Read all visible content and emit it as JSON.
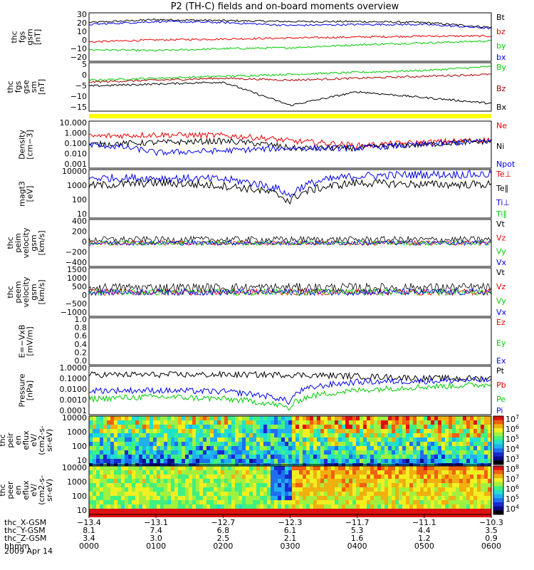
{
  "title": "P2 (TH-C) fields and on-board moments overview",
  "date": "2009 Apr 14",
  "panels": [
    {
      "id": "fgs_gsm",
      "ylabel": [
        "thc",
        "fgs",
        "gsm",
        "[nT]"
      ],
      "ylim": [
        -20,
        30
      ],
      "log": false,
      "ticks": [
        "30",
        "20",
        "10",
        "0",
        "−10",
        "−20"
      ],
      "legend": [
        {
          "t": "Bt",
          "c": "#000000"
        },
        {
          "t": "bz",
          "c": "#ee0000"
        },
        {
          "t": "by",
          "c": "#00cc00"
        },
        {
          "t": "bx",
          "c": "#0000ee"
        }
      ]
    },
    {
      "id": "fgs_gse",
      "ylabel": [
        "thc",
        "fgs",
        "gse",
        "sm",
        "[nT]"
      ],
      "ylim": [
        -18,
        7
      ],
      "log": false,
      "ticks": [
        "5",
        "0",
        "−5",
        "−10",
        "−15"
      ],
      "legend": [
        {
          "t": "By",
          "c": "#00cc00"
        },
        {
          "t": "Bz",
          "c": "#aa0000"
        },
        {
          "t": "Bx",
          "c": "#000000"
        }
      ]
    },
    {
      "id": "density",
      "ylabel": [
        "Density",
        "[cm−3]"
      ],
      "ylim": [
        0.001,
        10
      ],
      "log": true,
      "ticks": [
        "10.000",
        "1.000",
        "0.100",
        "0.010",
        "0.001"
      ],
      "legend": [
        {
          "t": "Ne",
          "c": "#ee0000"
        },
        {
          "t": "Ni",
          "c": "#000000"
        },
        {
          "t": "Npot",
          "c": "#0000ee"
        }
      ]
    },
    {
      "id": "temp",
      "ylabel": [
        "magt3",
        "[eV]"
      ],
      "ylim": [
        10,
        10000
      ],
      "log": true,
      "ticks": [
        "10000",
        "1000",
        "100",
        "10"
      ],
      "legend": [
        {
          "t": "Te⊥",
          "c": "#ee0000"
        },
        {
          "t": "Te∥",
          "c": "#000000"
        },
        {
          "t": "Ti⊥",
          "c": "#0000ee"
        },
        {
          "t": "Ti∥",
          "c": "#00cc00"
        }
      ]
    },
    {
      "id": "vel_i",
      "ylabel": [
        "thc",
        "peim",
        "velocity",
        "gsm",
        "[km/s]"
      ],
      "ylim": [
        -400,
        400
      ],
      "log": false,
      "ticks": [
        "400",
        "200",
        "0",
        "−200",
        "−400"
      ],
      "legend": [
        {
          "t": "Vt",
          "c": "#000000"
        },
        {
          "t": "Vz",
          "c": "#ee0000"
        },
        {
          "t": "Vy",
          "c": "#00cc00"
        },
        {
          "t": "Vx",
          "c": "#0000ee"
        }
      ]
    },
    {
      "id": "vel_e",
      "ylabel": [
        "thc",
        "peem",
        "velocity",
        "gsm",
        "[km/s]"
      ],
      "ylim": [
        -1500,
        1500
      ],
      "log": false,
      "ticks": [
        "1500",
        "1000",
        "500",
        "0",
        "−500",
        "−1000"
      ],
      "legend": [
        {
          "t": "Vt",
          "c": "#000000"
        },
        {
          "t": "Vz",
          "c": "#ee0000"
        },
        {
          "t": "Vy",
          "c": "#00cc00"
        },
        {
          "t": "Vx",
          "c": "#0000ee"
        }
      ]
    },
    {
      "id": "efield",
      "ylabel": [
        "E=−VxB",
        "[mV/m]"
      ],
      "ylim": [
        0,
        1
      ],
      "log": false,
      "ticks": [
        "1.0",
        "0.8",
        "0.6",
        "0.4",
        "0.2",
        "0.0"
      ],
      "legend": [
        {
          "t": "Ez",
          "c": "#ee0000"
        },
        {
          "t": "Ey",
          "c": "#00cc00"
        },
        {
          "t": "Ex",
          "c": "#0000ee"
        }
      ]
    },
    {
      "id": "pressure",
      "ylabel": [
        "Pressure",
        "[nPa]"
      ],
      "ylim": [
        0.0001,
        1
      ],
      "log": true,
      "ticks": [
        "1.0000",
        "0.1000",
        "0.0100",
        "0.0010",
        "0.0001"
      ],
      "legend": [
        {
          "t": "Pt",
          "c": "#000000"
        },
        {
          "t": "Pb",
          "c": "#ee0000"
        },
        {
          "t": "Pe",
          "c": "#00cc00"
        },
        {
          "t": "Pi",
          "c": "#0000ee"
        }
      ]
    },
    {
      "id": "spec_i",
      "ylabel": [
        "thc",
        "peir",
        "en",
        "eflux",
        "eV/",
        "(cm2-s-",
        "sr-eV)"
      ],
      "ylim": [
        10,
        20000
      ],
      "log": true,
      "ticks": [
        "10000",
        "1000",
        "100",
        "10"
      ],
      "cbar": [
        "107",
        "106",
        "105",
        "104",
        "103"
      ]
    },
    {
      "id": "spec_e",
      "ylabel": [
        "thc",
        "peer",
        "en",
        "eflux",
        "eV/",
        "(cm2-s-",
        "sr-eV)"
      ],
      "ylim": [
        10,
        20000
      ],
      "log": true,
      "ticks": [
        "10000",
        "1000",
        "100",
        "10"
      ],
      "cbar": [
        "108",
        "107",
        "106",
        "105",
        "104"
      ]
    }
  ],
  "xaxis": {
    "row_labels": [
      "thc_X-GSM",
      "thc_Y-GSM",
      "thc_Z-GSM",
      "hhmm"
    ],
    "columns": [
      [
        "−13.4",
        "8.1",
        "3.4",
        "0000"
      ],
      [
        "−13.1",
        "7.4",
        "3.0",
        "0100"
      ],
      [
        "−12.7",
        "6.8",
        "2.5",
        "0200"
      ],
      [
        "−12.3",
        "6.1",
        "2.1",
        "0300"
      ],
      [
        "−11.7",
        "5.3",
        "1.6",
        "0400"
      ],
      [
        "−11.1",
        "4.4",
        "1.2",
        "0500"
      ],
      [
        "−10.3",
        "3.5",
        "0.9",
        "0600"
      ]
    ]
  },
  "chart_data": {
    "type": "line",
    "title": "P2 (TH-C) fields and on-board moments overview",
    "x": [
      "0000",
      "0100",
      "0200",
      "0300",
      "0400",
      "0500",
      "0600"
    ],
    "series": [
      {
        "name": "Bt",
        "panel": "fgs_gsm",
        "values": [
          20,
          23,
          22,
          21,
          21,
          20,
          15
        ]
      },
      {
        "name": "bz",
        "panel": "fgs_gsm",
        "values": [
          0,
          2,
          3,
          4,
          5,
          6,
          6
        ]
      },
      {
        "name": "by",
        "panel": "fgs_gsm",
        "values": [
          -8,
          -9,
          -7,
          -6,
          -3,
          -1,
          1
        ]
      },
      {
        "name": "bx",
        "panel": "fgs_gsm",
        "values": [
          18,
          21,
          20,
          17,
          18,
          18,
          14
        ]
      },
      {
        "name": "By",
        "panel": "fgs_gse",
        "values": [
          -2,
          -1,
          0,
          1,
          2,
          3,
          5
        ]
      },
      {
        "name": "Bz",
        "panel": "fgs_gse",
        "values": [
          -3,
          -2,
          -1,
          -2,
          -1,
          0,
          1
        ]
      },
      {
        "name": "Bx",
        "panel": "fgs_gse",
        "values": [
          -5,
          -4,
          -3,
          -15,
          -8,
          -11,
          -14
        ]
      },
      {
        "name": "Ne",
        "panel": "density",
        "values": [
          0.5,
          0.7,
          0.6,
          0.2,
          0.08,
          0.15,
          0.25
        ]
      },
      {
        "name": "Ni",
        "panel": "density",
        "values": [
          0.1,
          0.15,
          0.2,
          0.05,
          0.05,
          0.1,
          0.2
        ]
      },
      {
        "name": "Npot",
        "panel": "density",
        "values": [
          0.1,
          0.02,
          0.03,
          0.05,
          0.05,
          0.1,
          0.2
        ]
      },
      {
        "name": "Ti⊥",
        "panel": "temp",
        "values": [
          3000,
          3000,
          2500,
          200,
          4000,
          5000,
          5000
        ]
      },
      {
        "name": "Te∥",
        "panel": "temp",
        "values": [
          1000,
          1500,
          1000,
          100,
          1500,
          1200,
          1200
        ]
      },
      {
        "name": "Pt",
        "panel": "pressure",
        "values": [
          0.2,
          0.2,
          0.2,
          0.2,
          0.15,
          0.1,
          0.1
        ]
      },
      {
        "name": "Pi",
        "panel": "pressure",
        "values": [
          0.01,
          0.01,
          0.008,
          0.001,
          0.05,
          0.06,
          0.07
        ]
      },
      {
        "name": "Pe",
        "panel": "pressure",
        "values": [
          0.002,
          0.003,
          0.002,
          0.0003,
          0.01,
          0.02,
          0.03
        ]
      }
    ]
  }
}
